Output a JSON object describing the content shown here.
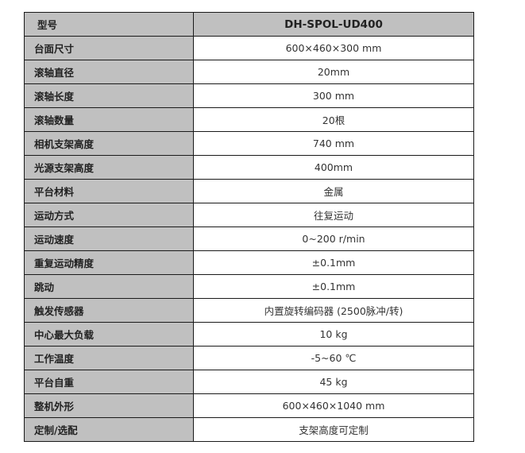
{
  "header": {
    "label": "型号",
    "value": "DH-SPOL-UD400"
  },
  "rows": [
    {
      "label": "台面尺寸",
      "value": "600×460×300 mm"
    },
    {
      "label": "滚轴直径",
      "value": "20mm"
    },
    {
      "label": "滚轴长度",
      "value": "300 mm"
    },
    {
      "label": "滚轴数量",
      "value": "20根"
    },
    {
      "label": "相机支架高度",
      "value": "740 mm"
    },
    {
      "label": "光源支架高度",
      "value": "400mm"
    },
    {
      "label": "平台材料",
      "value": "金属"
    },
    {
      "label": "运动方式",
      "value": "往复运动"
    },
    {
      "label": "运动速度",
      "value": "0~200 r/min"
    },
    {
      "label": "重复运动精度",
      "value": "±0.1mm"
    },
    {
      "label": "跳动",
      "value": "±0.1mm"
    },
    {
      "label": "触发传感器",
      "value": "内置旋转编码器 (2500脉冲/转)"
    },
    {
      "label": "中心最大负载",
      "value": "10 kg"
    },
    {
      "label": "工作温度",
      "value": "-5~60 ℃"
    },
    {
      "label": "平台自重",
      "value": "45 kg"
    },
    {
      "label": "整机外形",
      "value": "600×460×1040 mm"
    },
    {
      "label": "定制/选配",
      "value": "支架高度可定制"
    }
  ]
}
